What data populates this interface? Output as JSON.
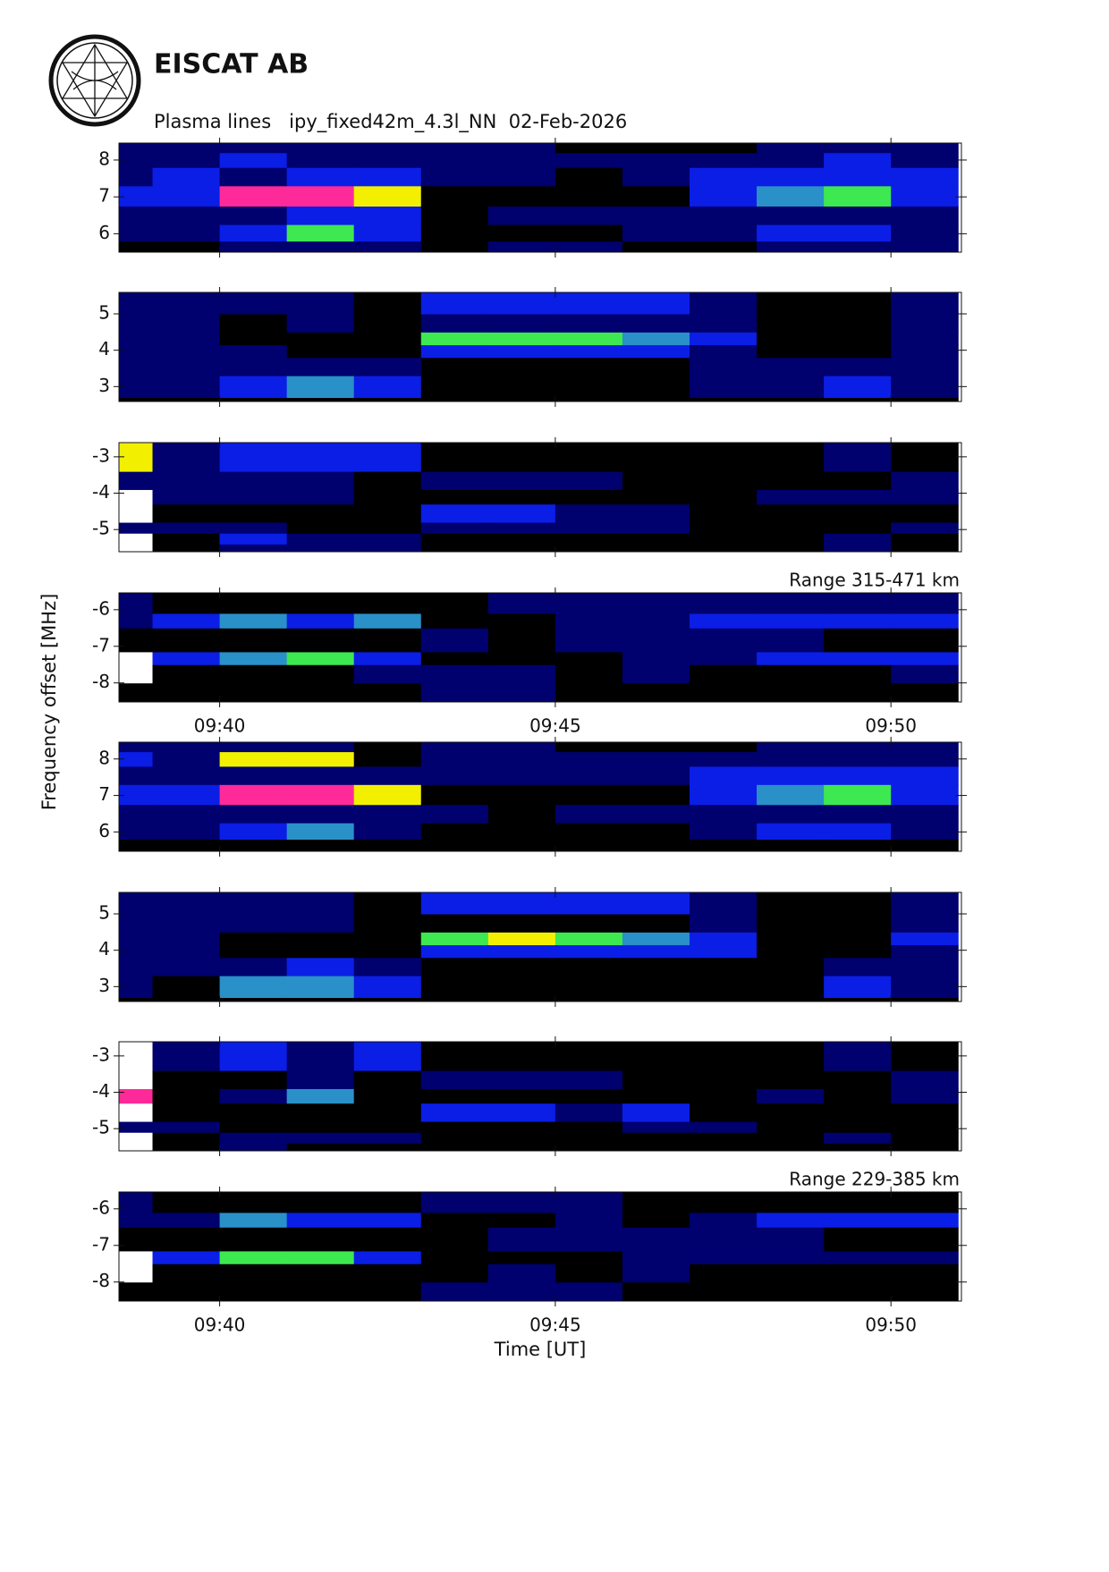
{
  "header": {
    "org": "EISCAT AB",
    "title": "Plasma lines   ipy_fixed42m_4.3l_NN  02-Feb-2026"
  },
  "y_label": "Frequency offset [MHz]",
  "x_label": "Time [UT]",
  "xlim": [
    38.5,
    51.05
  ],
  "x_edges": [
    38.5,
    39,
    40,
    41,
    42,
    43,
    44,
    45,
    46,
    47,
    48,
    49,
    50,
    51
  ],
  "xticks": [
    {
      "value": 40,
      "label": "09:40"
    },
    {
      "value": 45,
      "label": "09:45"
    },
    {
      "value": 50,
      "label": "09:50"
    }
  ],
  "colorscale": [
    "#000000",
    "#00006e",
    "#0a1ee6",
    "#2a90c8",
    "#3de850",
    "#f2f000",
    "#ff2a9a",
    "#ffffff"
  ],
  "chart_data": [
    {
      "type": "heatmap",
      "ylim": [
        5.5,
        8.46
      ],
      "yticks": [
        6,
        7,
        8
      ],
      "y_edges": [
        5.5,
        5.8,
        6.25,
        6.75,
        7.3,
        7.8,
        8.2,
        8.46
      ],
      "z": [
        [
          0,
          1,
          1,
          2,
          1,
          1,
          1
        ],
        [
          0,
          1,
          1,
          2,
          2,
          1,
          1
        ],
        [
          1,
          2,
          1,
          6,
          1,
          2,
          1
        ],
        [
          1,
          4,
          2,
          6,
          2,
          1,
          1
        ],
        [
          1,
          2,
          2,
          5,
          2,
          1,
          1
        ],
        [
          0,
          0,
          0,
          0,
          1,
          1,
          1
        ],
        [
          1,
          0,
          1,
          0,
          1,
          1,
          1
        ],
        [
          1,
          0,
          1,
          0,
          0,
          1,
          0
        ],
        [
          0,
          1,
          1,
          0,
          1,
          1,
          0
        ],
        [
          0,
          1,
          1,
          2,
          2,
          1,
          0
        ],
        [
          1,
          2,
          1,
          3,
          2,
          1,
          1
        ],
        [
          1,
          2,
          1,
          4,
          2,
          2,
          1
        ],
        [
          1,
          1,
          1,
          2,
          2,
          1,
          1
        ]
      ]
    },
    {
      "type": "heatmap",
      "ylim": [
        2.59,
        5.59
      ],
      "yticks": [
        3,
        4,
        5
      ],
      "y_edges": [
        2.59,
        2.7,
        3.3,
        3.8,
        4.15,
        4.5,
        5.0,
        5.59
      ],
      "z": [
        [
          0,
          1,
          1,
          1,
          1,
          1,
          1
        ],
        [
          0,
          1,
          1,
          1,
          1,
          1,
          1
        ],
        [
          0,
          2,
          1,
          1,
          0,
          0,
          1
        ],
        [
          0,
          3,
          1,
          0,
          0,
          1,
          1
        ],
        [
          0,
          2,
          1,
          0,
          0,
          0,
          0
        ],
        [
          0,
          0,
          0,
          2,
          4,
          1,
          2
        ],
        [
          0,
          0,
          0,
          2,
          4,
          1,
          2
        ],
        [
          0,
          0,
          0,
          2,
          4,
          1,
          2
        ],
        [
          0,
          0,
          0,
          2,
          3,
          1,
          2
        ],
        [
          0,
          1,
          1,
          1,
          2,
          1,
          1
        ],
        [
          0,
          1,
          1,
          0,
          0,
          0,
          0
        ],
        [
          0,
          2,
          1,
          0,
          0,
          0,
          0
        ],
        [
          0,
          1,
          1,
          1,
          1,
          1,
          1
        ]
      ]
    },
    {
      "type": "heatmap",
      "ylim": [
        -5.61,
        -2.61
      ],
      "yticks": [
        -5,
        -4,
        -3
      ],
      "y_edges": [
        -5.61,
        -5.4,
        -5.1,
        -4.8,
        -4.3,
        -3.9,
        -3.4,
        -2.61
      ],
      "z": [
        [
          7,
          7,
          1,
          7,
          7,
          1,
          5
        ],
        [
          0,
          0,
          1,
          0,
          1,
          1,
          1
        ],
        [
          1,
          2,
          1,
          0,
          1,
          1,
          2
        ],
        [
          1,
          1,
          0,
          0,
          1,
          1,
          2
        ],
        [
          1,
          1,
          0,
          0,
          0,
          0,
          2
        ],
        [
          0,
          0,
          1,
          2,
          0,
          1,
          0
        ],
        [
          0,
          0,
          1,
          2,
          0,
          1,
          0
        ],
        [
          0,
          0,
          1,
          1,
          0,
          1,
          0
        ],
        [
          0,
          0,
          1,
          1,
          0,
          0,
          0
        ],
        [
          0,
          0,
          0,
          0,
          0,
          0,
          0
        ],
        [
          0,
          0,
          0,
          0,
          1,
          0,
          0
        ],
        [
          1,
          1,
          0,
          0,
          1,
          0,
          1
        ],
        [
          0,
          0,
          1,
          0,
          1,
          1,
          0
        ]
      ]
    },
    {
      "type": "heatmap",
      "ylim": [
        -8.52,
        -5.54
      ],
      "yticks": [
        -8,
        -7,
        -6
      ],
      "y_edges": [
        -8.52,
        -8.0,
        -7.5,
        -7.15,
        -6.5,
        -6.1,
        -5.54
      ],
      "annotation": "Range 315-471 km",
      "show_xticklabels": true,
      "z": [
        [
          0,
          7,
          7,
          0,
          1,
          1
        ],
        [
          0,
          0,
          2,
          0,
          2,
          0
        ],
        [
          0,
          0,
          3,
          0,
          3,
          0
        ],
        [
          0,
          0,
          4,
          0,
          2,
          0
        ],
        [
          0,
          1,
          2,
          0,
          3,
          0
        ],
        [
          1,
          1,
          0,
          1,
          0,
          0
        ],
        [
          1,
          1,
          0,
          0,
          0,
          1
        ],
        [
          0,
          0,
          0,
          1,
          1,
          1
        ],
        [
          0,
          1,
          1,
          1,
          1,
          1
        ],
        [
          0,
          0,
          1,
          1,
          2,
          1
        ],
        [
          0,
          0,
          2,
          1,
          2,
          1
        ],
        [
          0,
          0,
          2,
          0,
          2,
          1
        ],
        [
          0,
          1,
          2,
          0,
          2,
          1
        ]
      ]
    },
    {
      "type": "heatmap",
      "ylim": [
        5.47,
        8.46
      ],
      "yticks": [
        6,
        7,
        8
      ],
      "y_edges": [
        5.47,
        5.8,
        6.25,
        6.75,
        7.3,
        7.8,
        8.2,
        8.46
      ],
      "z": [
        [
          0,
          1,
          1,
          2,
          1,
          2,
          1
        ],
        [
          0,
          1,
          1,
          2,
          1,
          1,
          1
        ],
        [
          0,
          2,
          1,
          6,
          1,
          5,
          1
        ],
        [
          0,
          3,
          1,
          6,
          1,
          5,
          1
        ],
        [
          0,
          1,
          1,
          5,
          1,
          0,
          0
        ],
        [
          0,
          0,
          1,
          0,
          1,
          1,
          1
        ],
        [
          0,
          0,
          0,
          0,
          1,
          1,
          1
        ],
        [
          0,
          0,
          1,
          0,
          1,
          1,
          0
        ],
        [
          0,
          0,
          1,
          0,
          1,
          1,
          0
        ],
        [
          0,
          1,
          1,
          2,
          2,
          1,
          0
        ],
        [
          0,
          2,
          1,
          3,
          2,
          1,
          1
        ],
        [
          0,
          2,
          1,
          4,
          2,
          1,
          1
        ],
        [
          0,
          1,
          1,
          2,
          2,
          1,
          1
        ]
      ]
    },
    {
      "type": "heatmap",
      "ylim": [
        2.59,
        5.59
      ],
      "yticks": [
        3,
        4,
        5
      ],
      "y_edges": [
        2.59,
        2.7,
        3.3,
        3.8,
        4.15,
        4.5,
        5.0,
        5.59
      ],
      "z": [
        [
          0,
          1,
          1,
          1,
          1,
          1,
          1
        ],
        [
          0,
          0,
          1,
          1,
          1,
          1,
          1
        ],
        [
          0,
          3,
          1,
          0,
          0,
          1,
          1
        ],
        [
          0,
          3,
          2,
          0,
          0,
          1,
          1
        ],
        [
          0,
          2,
          1,
          0,
          0,
          0,
          0
        ],
        [
          0,
          0,
          0,
          2,
          4,
          0,
          2
        ],
        [
          0,
          0,
          0,
          2,
          5,
          0,
          2
        ],
        [
          0,
          0,
          0,
          2,
          4,
          0,
          2
        ],
        [
          0,
          0,
          0,
          2,
          3,
          0,
          2
        ],
        [
          0,
          0,
          0,
          2,
          2,
          1,
          1
        ],
        [
          0,
          0,
          0,
          0,
          0,
          0,
          0
        ],
        [
          0,
          2,
          1,
          0,
          0,
          0,
          0
        ],
        [
          0,
          1,
          1,
          1,
          2,
          1,
          1
        ]
      ]
    },
    {
      "type": "heatmap",
      "ylim": [
        -5.61,
        -2.61
      ],
      "yticks": [
        -5,
        -4,
        -3
      ],
      "y_edges": [
        -5.61,
        -5.4,
        -5.1,
        -4.8,
        -4.3,
        -3.9,
        -3.4,
        -2.61
      ],
      "z": [
        [
          7,
          7,
          1,
          7,
          6,
          7,
          7
        ],
        [
          0,
          0,
          1,
          0,
          0,
          0,
          1
        ],
        [
          1,
          1,
          0,
          0,
          1,
          0,
          2
        ],
        [
          0,
          1,
          0,
          0,
          3,
          1,
          1
        ],
        [
          0,
          1,
          0,
          0,
          0,
          0,
          2
        ],
        [
          0,
          0,
          0,
          2,
          0,
          1,
          0
        ],
        [
          0,
          0,
          0,
          2,
          0,
          1,
          0
        ],
        [
          0,
          0,
          0,
          1,
          0,
          1,
          0
        ],
        [
          0,
          0,
          1,
          2,
          0,
          0,
          0
        ],
        [
          0,
          0,
          1,
          0,
          0,
          0,
          0
        ],
        [
          0,
          0,
          0,
          0,
          1,
          0,
          0
        ],
        [
          0,
          1,
          0,
          0,
          0,
          0,
          1
        ],
        [
          0,
          0,
          0,
          0,
          1,
          1,
          0
        ]
      ]
    },
    {
      "type": "heatmap",
      "ylim": [
        -8.52,
        -5.54
      ],
      "yticks": [
        -8,
        -7,
        -6
      ],
      "y_edges": [
        -8.52,
        -8.0,
        -7.5,
        -7.15,
        -6.5,
        -6.1,
        -5.54
      ],
      "annotation": "Range 229-385 km",
      "show_xticklabels": true,
      "z": [
        [
          0,
          7,
          7,
          0,
          1,
          1
        ],
        [
          0,
          0,
          2,
          0,
          1,
          0
        ],
        [
          0,
          0,
          4,
          0,
          3,
          0
        ],
        [
          0,
          0,
          4,
          0,
          2,
          0
        ],
        [
          0,
          0,
          2,
          0,
          2,
          0
        ],
        [
          1,
          0,
          0,
          0,
          0,
          1
        ],
        [
          1,
          1,
          0,
          1,
          0,
          1
        ],
        [
          1,
          0,
          0,
          1,
          1,
          1
        ],
        [
          0,
          1,
          1,
          1,
          0,
          0
        ],
        [
          0,
          0,
          1,
          1,
          1,
          0
        ],
        [
          0,
          0,
          1,
          1,
          2,
          0
        ],
        [
          0,
          0,
          1,
          0,
          2,
          0
        ],
        [
          0,
          0,
          1,
          0,
          2,
          0
        ]
      ]
    }
  ]
}
